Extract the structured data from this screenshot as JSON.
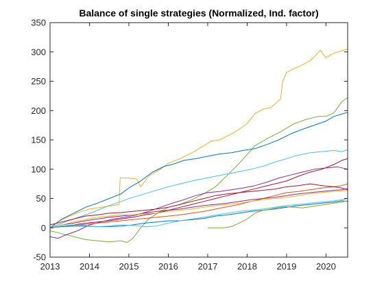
{
  "chart_data": {
    "type": "line",
    "title": "Balance of single strategies (Normalized, Ind. factor)",
    "xlabel": "",
    "ylabel": "",
    "xlim": [
      2013,
      2020.55
    ],
    "ylim": [
      -50,
      350
    ],
    "xticks": [
      2013,
      2014,
      2015,
      2016,
      2017,
      2018,
      2019,
      2020
    ],
    "yticks": [
      -50,
      0,
      50,
      100,
      150,
      200,
      250,
      300,
      350
    ],
    "grid": false,
    "legend": "none",
    "series": [
      {
        "color": "#EDB120",
        "x": [
          2013.0,
          2013.2,
          2013.5,
          2013.8,
          2014.0,
          2014.3,
          2014.6,
          2014.75,
          2014.78,
          2015.0,
          2015.2,
          2015.3,
          2015.5,
          2015.8,
          2016.0,
          2016.3,
          2016.6,
          2016.9,
          2017.1,
          2017.3,
          2017.6,
          2017.8,
          2018.0,
          2018.2,
          2018.4,
          2018.6,
          2018.85,
          2018.9,
          2019.0,
          2019.2,
          2019.4,
          2019.6,
          2019.75,
          2019.85,
          2020.0,
          2020.2,
          2020.4,
          2020.55
        ],
        "y": [
          0,
          10,
          20,
          28,
          32,
          35,
          38,
          40,
          85,
          85,
          83,
          70,
          88,
          100,
          110,
          118,
          128,
          140,
          148,
          150,
          160,
          168,
          178,
          195,
          202,
          205,
          220,
          250,
          265,
          272,
          278,
          285,
          295,
          303,
          290,
          298,
          302,
          305
        ]
      },
      {
        "color": "#77AC30",
        "x": [
          2013.0,
          2013.3,
          2013.6,
          2013.9,
          2014.2,
          2014.5,
          2014.8,
          2014.95,
          2015.1,
          2015.3,
          2015.5,
          2015.8,
          2016.0,
          2016.3,
          2016.6,
          2016.9,
          2017.2,
          2017.5,
          2017.8,
          2018.0,
          2018.2,
          2018.5,
          2018.8,
          2019.0,
          2019.2,
          2019.5,
          2019.8,
          2020.0,
          2020.2,
          2020.4,
          2020.55
        ],
        "y": [
          -5,
          -10,
          -15,
          -20,
          -22,
          -24,
          -22,
          -25,
          -18,
          0,
          15,
          28,
          35,
          40,
          48,
          58,
          70,
          90,
          110,
          125,
          140,
          152,
          162,
          170,
          178,
          185,
          190,
          190,
          196,
          215,
          222
        ]
      },
      {
        "color": "#0072BD",
        "x": [
          2013.0,
          2013.3,
          2013.6,
          2013.9,
          2014.2,
          2014.5,
          2014.8,
          2015.0,
          2015.3,
          2015.6,
          2015.9,
          2016.1,
          2016.4,
          2016.7,
          2017.0,
          2017.3,
          2017.6,
          2017.9,
          2018.2,
          2018.5,
          2018.8,
          2019.1,
          2019.4,
          2019.7,
          2020.0,
          2020.2,
          2020.4,
          2020.55
        ],
        "y": [
          0,
          15,
          25,
          35,
          42,
          50,
          58,
          68,
          80,
          95,
          105,
          108,
          115,
          118,
          122,
          126,
          128,
          132,
          135,
          142,
          150,
          160,
          168,
          175,
          182,
          190,
          194,
          197
        ]
      },
      {
        "color": "#4DBEEE",
        "x": [
          2013.0,
          2013.3,
          2013.6,
          2013.9,
          2014.2,
          2014.5,
          2014.8,
          2015.1,
          2015.4,
          2015.7,
          2016.0,
          2016.3,
          2016.6,
          2016.9,
          2017.2,
          2017.5,
          2017.8,
          2018.1,
          2018.4,
          2018.7,
          2019.0,
          2019.3,
          2019.6,
          2019.9,
          2020.2,
          2020.4,
          2020.55
        ],
        "y": [
          0,
          8,
          15,
          22,
          30,
          38,
          45,
          52,
          58,
          64,
          70,
          75,
          80,
          84,
          88,
          92,
          96,
          100,
          105,
          112,
          118,
          124,
          128,
          130,
          132,
          130,
          133
        ]
      },
      {
        "color": "#A2142F",
        "x": [
          2013.0,
          2013.3,
          2013.6,
          2013.9,
          2014.2,
          2014.5,
          2014.8,
          2015.1,
          2015.4,
          2015.7,
          2016.0,
          2016.3,
          2016.6,
          2016.9,
          2017.2,
          2017.5,
          2017.8,
          2018.1,
          2018.4,
          2018.7,
          2019.0,
          2019.3,
          2019.6,
          2019.9,
          2020.2,
          2020.4,
          2020.55
        ],
        "y": [
          0,
          3,
          5,
          8,
          10,
          12,
          15,
          18,
          22,
          25,
          30,
          35,
          40,
          45,
          50,
          55,
          60,
          65,
          70,
          75,
          80,
          88,
          95,
          100,
          108,
          115,
          118
        ]
      },
      {
        "color": "#7E2F8E",
        "x": [
          2013.0,
          2013.2,
          2013.4,
          2013.7,
          2014.0,
          2014.3,
          2014.6,
          2014.9,
          2015.2,
          2015.5,
          2015.8,
          2016.1,
          2016.4,
          2016.7,
          2017.0,
          2017.3,
          2017.6,
          2017.9,
          2018.2,
          2018.5,
          2018.8,
          2019.1,
          2019.4,
          2019.7,
          2020.0,
          2020.3,
          2020.55
        ],
        "y": [
          -15,
          -18,
          -12,
          -5,
          5,
          10,
          15,
          18,
          22,
          28,
          35,
          42,
          48,
          55,
          60,
          62,
          65,
          68,
          72,
          78,
          85,
          90,
          95,
          100,
          102,
          104,
          100
        ]
      },
      {
        "color": "#D95319",
        "x": [
          2013.0,
          2013.3,
          2013.6,
          2013.9,
          2014.2,
          2014.5,
          2014.8,
          2015.1,
          2015.4,
          2015.7,
          2016.0,
          2016.3,
          2016.6,
          2016.9,
          2017.2,
          2017.5,
          2017.8,
          2018.1,
          2018.4,
          2018.7,
          2019.0,
          2019.3,
          2019.6,
          2019.9,
          2020.2,
          2020.4,
          2020.55
        ],
        "y": [
          0,
          2,
          4,
          6,
          8,
          10,
          12,
          14,
          16,
          18,
          20,
          22,
          25,
          28,
          32,
          36,
          40,
          45,
          50,
          55,
          60,
          62,
          65,
          68,
          70,
          72,
          75
        ]
      },
      {
        "color": "#7E2F8E",
        "x": [
          2013.0,
          2013.3,
          2013.6,
          2013.9,
          2014.2,
          2014.5,
          2014.8,
          2015.1,
          2015.4,
          2015.7,
          2016.0,
          2016.3,
          2016.6,
          2016.9,
          2017.2,
          2017.5,
          2017.8,
          2018.1,
          2018.4,
          2018.7,
          2019.0,
          2019.3,
          2019.6,
          2019.9,
          2020.2,
          2020.4,
          2020.55
        ],
        "y": [
          0,
          5,
          8,
          12,
          15,
          18,
          20,
          22,
          25,
          28,
          30,
          32,
          35,
          38,
          40,
          42,
          45,
          48,
          50,
          52,
          55,
          58,
          60,
          62,
          64,
          65,
          67
        ]
      },
      {
        "color": "#A2142F",
        "x": [
          2013.0,
          2013.3,
          2013.6,
          2013.9,
          2014.2,
          2014.5,
          2014.8,
          2015.1,
          2015.4,
          2015.7,
          2016.0,
          2016.3,
          2016.6,
          2016.9,
          2017.2,
          2017.5,
          2017.8,
          2018.1,
          2018.4,
          2018.7,
          2019.0,
          2019.3,
          2019.6,
          2019.9,
          2020.2,
          2020.4,
          2020.55
        ],
        "y": [
          5,
          10,
          15,
          20,
          22,
          25,
          26,
          28,
          30,
          32,
          35,
          40,
          45,
          50,
          55,
          58,
          60,
          62,
          64,
          66,
          70,
          72,
          75,
          72,
          70,
          68,
          65
        ]
      },
      {
        "color": "#EDB120",
        "x": [
          2013.0,
          2013.3,
          2013.6,
          2013.9,
          2014.2,
          2014.5,
          2014.8,
          2015.1,
          2015.4,
          2015.7,
          2016.0,
          2016.3,
          2016.6,
          2016.9,
          2017.2,
          2017.5,
          2017.8,
          2018.1,
          2018.4,
          2018.7,
          2019.0,
          2019.3,
          2019.6,
          2019.9,
          2020.2,
          2020.4,
          2020.55
        ],
        "y": [
          0,
          5,
          10,
          14,
          18,
          20,
          22,
          22,
          24,
          25,
          28,
          30,
          32,
          35,
          38,
          40,
          42,
          45,
          48,
          50,
          52,
          55,
          58,
          60,
          62,
          63,
          64
        ]
      },
      {
        "color": "#0072BD",
        "x": [
          2013.0,
          2013.3,
          2013.6,
          2013.9,
          2014.2,
          2014.5,
          2014.8,
          2015.1,
          2015.4,
          2015.7,
          2016.0,
          2016.3,
          2016.6,
          2016.9,
          2017.2,
          2017.5,
          2017.8,
          2018.1,
          2018.4,
          2018.7,
          2019.0,
          2019.3,
          2019.6,
          2019.9,
          2020.2,
          2020.4,
          2020.55
        ],
        "y": [
          0,
          2,
          3,
          3,
          2,
          2,
          3,
          5,
          8,
          10,
          12,
          12,
          14,
          16,
          20,
          22,
          25,
          28,
          30,
          32,
          35,
          38,
          40,
          42,
          44,
          46,
          45
        ]
      },
      {
        "color": "#4DBEEE",
        "x": [
          2013.0,
          2013.3,
          2013.6,
          2013.9,
          2014.2,
          2014.5,
          2014.8,
          2015.1,
          2015.4,
          2015.7,
          2016.0,
          2016.3,
          2016.6,
          2016.9,
          2017.2,
          2017.5,
          2017.8,
          2018.1,
          2018.4,
          2018.7,
          2019.0,
          2019.3,
          2019.6,
          2019.9,
          2020.2,
          2020.4,
          2020.55
        ],
        "y": [
          0,
          3,
          5,
          4,
          2,
          3,
          5,
          4,
          2,
          3,
          8,
          12,
          15,
          18,
          22,
          25,
          28,
          30,
          32,
          35,
          38,
          40,
          42,
          44,
          46,
          48,
          50
        ]
      },
      {
        "color": "#77AC30",
        "x": [
          2017.0,
          2017.2,
          2017.4,
          2017.6,
          2017.8,
          2018.0,
          2018.2,
          2018.4,
          2018.6,
          2018.8,
          2019.0,
          2019.2,
          2019.4,
          2019.6,
          2019.8,
          2020.0,
          2020.2,
          2020.4,
          2020.55
        ],
        "y": [
          0,
          0,
          0,
          2,
          8,
          15,
          25,
          30,
          32,
          35,
          36,
          35,
          34,
          36,
          38,
          40,
          42,
          44,
          46
        ]
      }
    ]
  }
}
